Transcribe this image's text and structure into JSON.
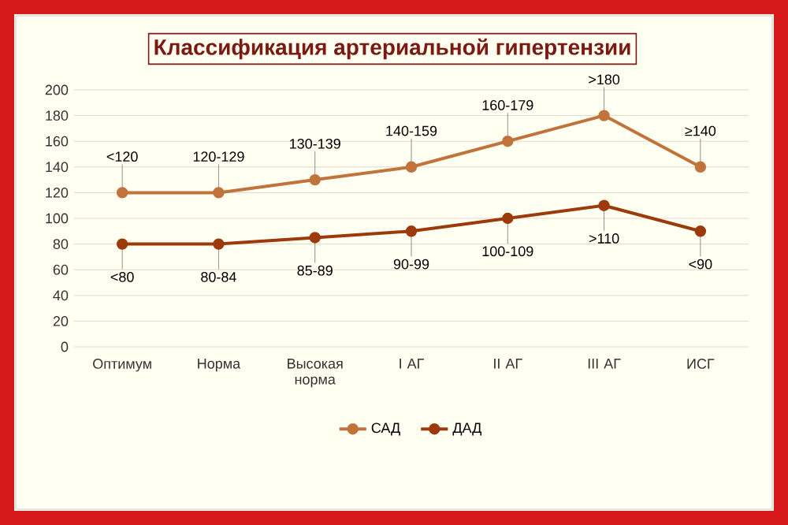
{
  "chart_data": {
    "type": "line",
    "title": "Классификация артериальной гипертензии",
    "categories": [
      "Оптимум",
      "Норма",
      "Высокая норма",
      "I АГ",
      "II АГ",
      "III АГ",
      "ИСГ"
    ],
    "series": [
      {
        "name": "САД",
        "color": "#c0733a",
        "values": [
          120,
          120,
          130,
          140,
          160,
          180,
          140
        ],
        "value_labels": [
          "<120",
          "120-129",
          "130-139",
          "140-159",
          "160-179",
          ">180",
          "≥140"
        ]
      },
      {
        "name": "ДАД",
        "color": "#9c3a0c",
        "values": [
          80,
          80,
          85,
          90,
          100,
          110,
          90
        ],
        "value_labels": [
          "<80",
          "80-84",
          "85-89",
          "90-99",
          "100-109",
          ">110",
          "<90"
        ]
      }
    ],
    "ylim": [
      0,
      200
    ],
    "yticks": [
      0,
      20,
      40,
      60,
      80,
      100,
      120,
      140,
      160,
      180,
      200
    ],
    "grid": "y",
    "legend": "bottom",
    "marker": "circle",
    "line_style": "solid"
  }
}
